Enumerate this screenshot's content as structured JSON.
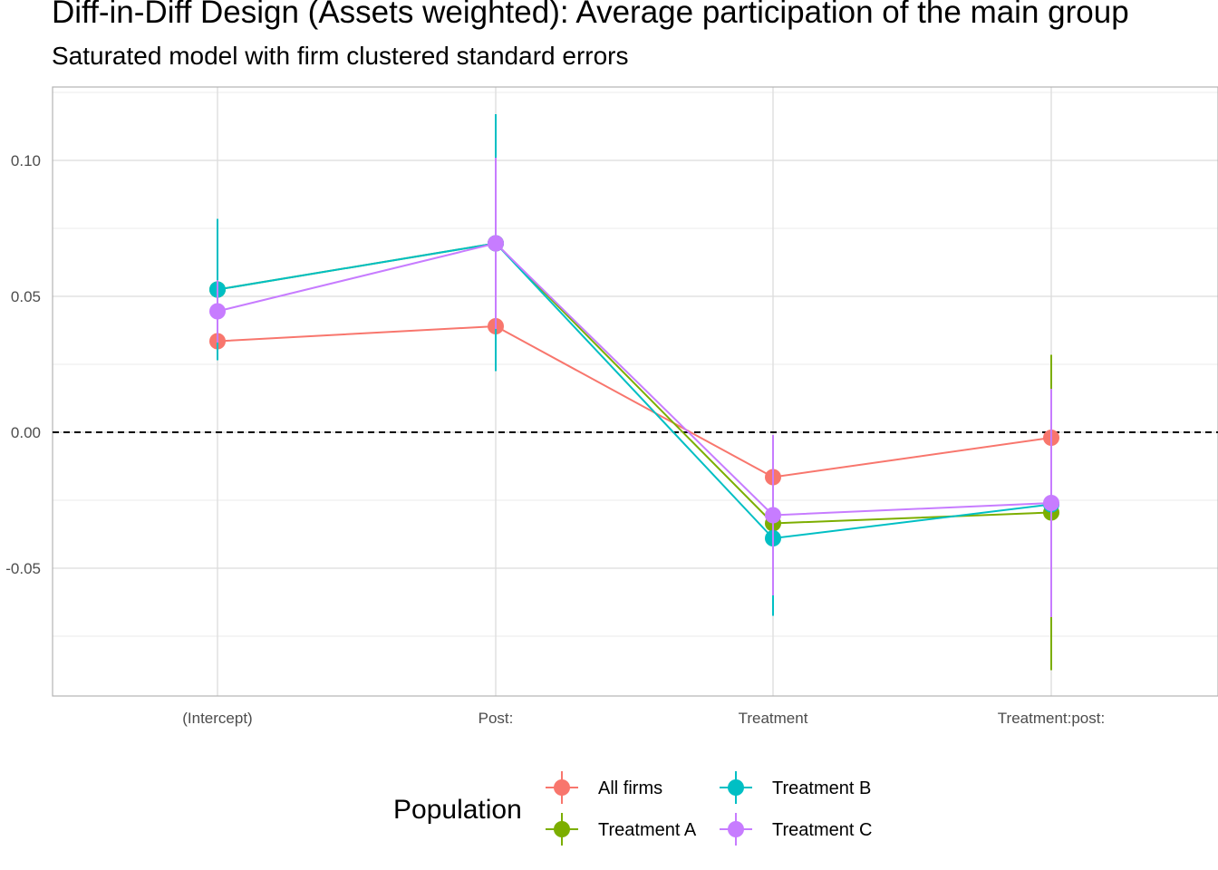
{
  "chart_data": {
    "type": "line",
    "title": "Diff-in-Diff Design (Assets weighted): Average participation of the main group",
    "subtitle": "Saturated model with firm clustered standard errors",
    "xlabel": "",
    "ylabel": "",
    "categories": [
      "(Intercept)",
      "Post:",
      "Treatment",
      "Treatment:post:"
    ],
    "y_ticks": [
      -0.05,
      0.0,
      0.05,
      0.1
    ],
    "y_tick_labels": [
      "-0.05",
      "0.00",
      "0.05",
      "0.10"
    ],
    "ylim": [
      -0.097,
      0.127
    ],
    "reference_line": 0,
    "grid": true,
    "legend": {
      "title": "Population",
      "position": "bottom"
    },
    "series": [
      {
        "name": "All firms",
        "color": "#F8766D",
        "values": [
          0.0335,
          0.039,
          -0.0165,
          -0.002
        ],
        "lower": [
          0.027,
          0.023,
          -0.032,
          -0.018
        ],
        "upper": [
          0.04,
          0.055,
          -0.001,
          0.014
        ]
      },
      {
        "name": "Treatment A",
        "color": "#7CAE00",
        "values": [
          0.0525,
          0.0695,
          -0.0335,
          -0.0295
        ],
        "lower": [
          0.04,
          0.038,
          -0.066,
          -0.0875
        ],
        "upper": [
          0.065,
          0.101,
          -0.001,
          0.0285
        ]
      },
      {
        "name": "Treatment B",
        "color": "#00BFC4",
        "values": [
          0.0525,
          0.0695,
          -0.039,
          -0.0265
        ],
        "lower": [
          0.0265,
          0.0225,
          -0.0675,
          -0.0675
        ],
        "upper": [
          0.0785,
          0.117,
          -0.0105,
          0.0145
        ]
      },
      {
        "name": "Treatment C",
        "color": "#C77CFF",
        "values": [
          0.0445,
          0.0695,
          -0.0305,
          -0.026
        ],
        "lower": [
          0.033,
          0.038,
          -0.06,
          -0.068
        ],
        "upper": [
          0.056,
          0.101,
          -0.001,
          0.016
        ]
      }
    ]
  }
}
